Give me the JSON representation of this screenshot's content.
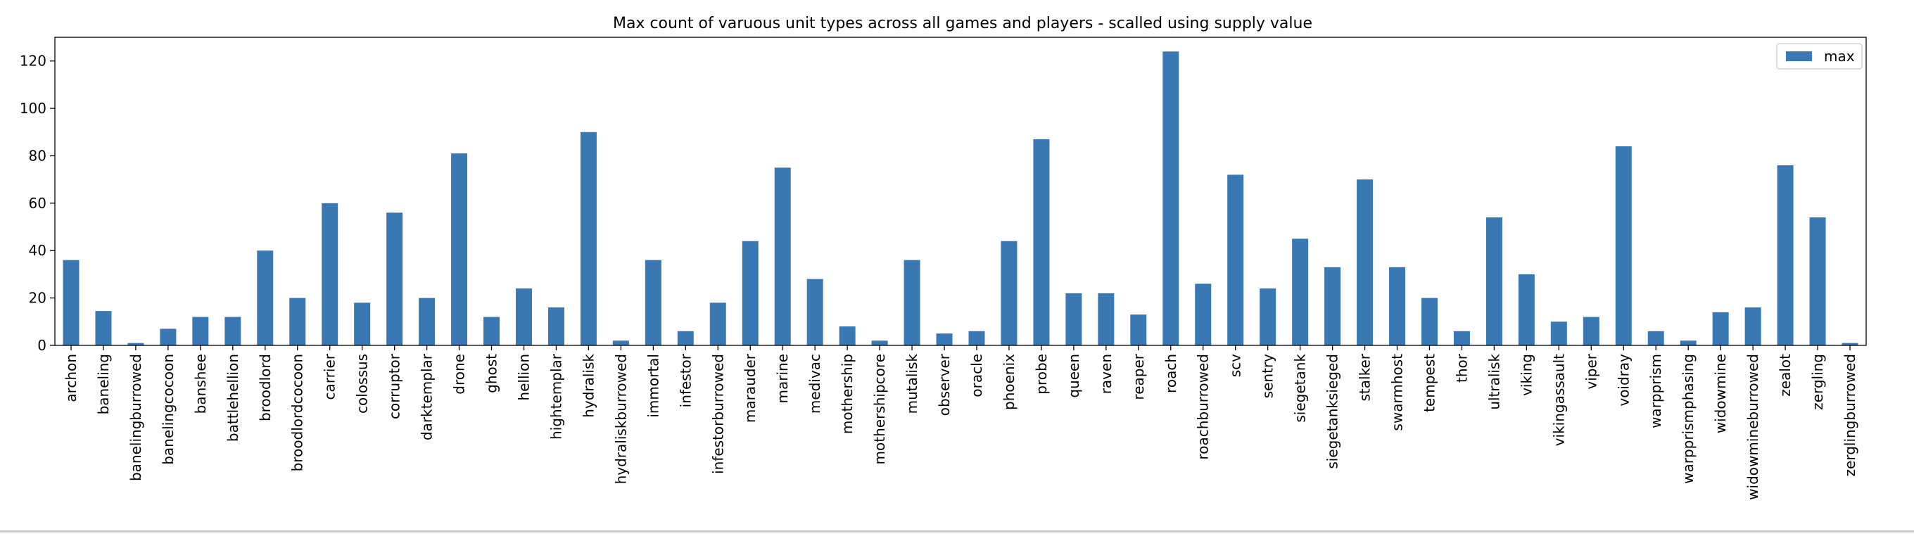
{
  "chart_data": {
    "type": "bar",
    "title": "Max count of varuous unit types across all games and players - scalled using supply value",
    "xlabel": "",
    "ylabel": "",
    "ylim": [
      0,
      130
    ],
    "yticks": [
      0,
      20,
      40,
      60,
      80,
      100,
      120
    ],
    "grid": false,
    "legend_position": "top-right",
    "bar_color": "#3a78b3",
    "categories": [
      "archon",
      "baneling",
      "banelingburrowed",
      "banelingcocoon",
      "banshee",
      "battlehellion",
      "broodlord",
      "broodlordcocoon",
      "carrier",
      "colossus",
      "corruptor",
      "darktemplar",
      "drone",
      "ghost",
      "hellion",
      "hightemplar",
      "hydralisk",
      "hydraliskburrowed",
      "immortal",
      "infestor",
      "infestorburrowed",
      "marauder",
      "marine",
      "medivac",
      "mothership",
      "mothershipcore",
      "mutalisk",
      "observer",
      "oracle",
      "phoenix",
      "probe",
      "queen",
      "raven",
      "reaper",
      "roach",
      "roachburrowed",
      "scv",
      "sentry",
      "siegetank",
      "siegetanksieged",
      "stalker",
      "swarmhost",
      "tempest",
      "thor",
      "ultralisk",
      "viking",
      "vikingassault",
      "viper",
      "voidray",
      "warpprism",
      "warpprismphasing",
      "widowmine",
      "widowmineburrowed",
      "zealot",
      "zergling",
      "zerglingburrowed"
    ],
    "series": [
      {
        "name": "max",
        "values": [
          36,
          14.5,
          1,
          7,
          12,
          12,
          40,
          20,
          60,
          18,
          56,
          20,
          81,
          12,
          24,
          16,
          90,
          2,
          36,
          6,
          18,
          44,
          75,
          28,
          8,
          2,
          36,
          5,
          6,
          44,
          87,
          22,
          22,
          13,
          124,
          26,
          72,
          24,
          45,
          33,
          70,
          33,
          20,
          6,
          54,
          30,
          10,
          12,
          84,
          6,
          2,
          14,
          16,
          76,
          54,
          1
        ]
      }
    ]
  }
}
